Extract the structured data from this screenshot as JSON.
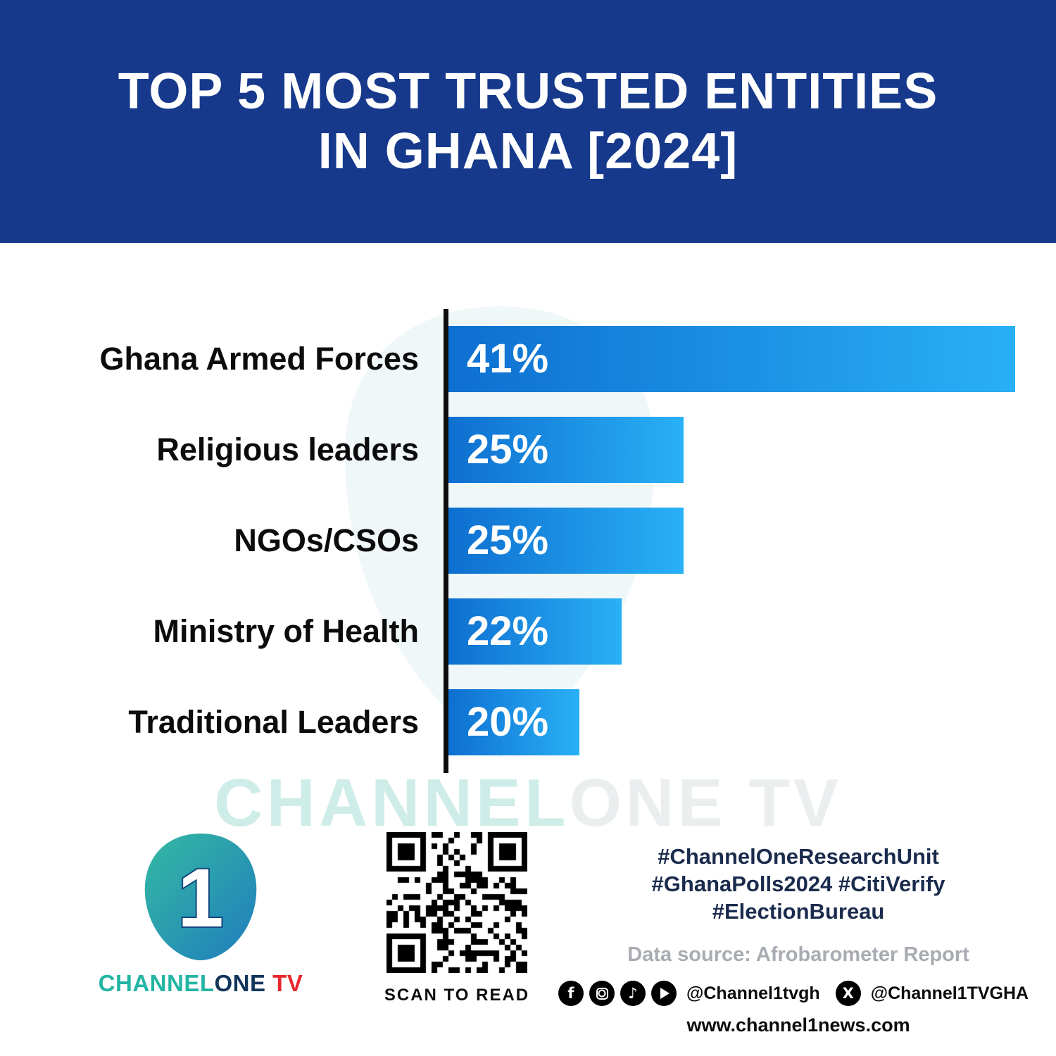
{
  "header": {
    "title_line1": "TOP 5 MOST TRUSTED ENTITIES",
    "title_line2": "IN GHANA [2024]"
  },
  "chart_data": {
    "type": "bar",
    "orientation": "horizontal",
    "title": "Top 5 Most Trusted Entities in Ghana [2024]",
    "categories": [
      "Ghana Armed Forces",
      "Religious leaders",
      "NGOs/CSOs",
      "Ministry of Health",
      "Traditional Leaders"
    ],
    "values": [
      41,
      25,
      25,
      22,
      20
    ],
    "value_labels": [
      "41%",
      "25%",
      "25%",
      "22%",
      "20%"
    ],
    "bar_visual_pct": [
      100,
      41.5,
      41.5,
      30.5,
      23.1
    ],
    "bar_color_left": "#0e6fd0",
    "bar_color_right": "#29b0f6",
    "axis_color": "#0d0d0d",
    "grid": false,
    "legend": false,
    "xlabel": "",
    "ylabel": ""
  },
  "watermark": {
    "part1": "CHANNEL",
    "part2": "ONE TV"
  },
  "footer": {
    "brand": {
      "numeral": "1",
      "channel": "CHANNEL",
      "one": "ONE",
      "tv": " TV"
    },
    "qr_caption": "SCAN TO READ",
    "hashtags": [
      "#ChannelOneResearchUnit",
      "#GhanaPolls2024 #CitiVerify",
      "#ElectionBureau"
    ],
    "data_source": "Data source: Afrobarometer Report",
    "social_handle_primary": "@Channel1tvgh",
    "social_handle_x": "@Channel1TVGHA",
    "website": "www.channel1news.com"
  },
  "colors": {
    "header_bg": "#16398c",
    "hashtag_navy": "#1a2b4d",
    "brand_teal": "#23b5a3",
    "brand_navy": "#12355b",
    "tv_red": "#e8262d",
    "source_gray": "#a8acb2"
  }
}
